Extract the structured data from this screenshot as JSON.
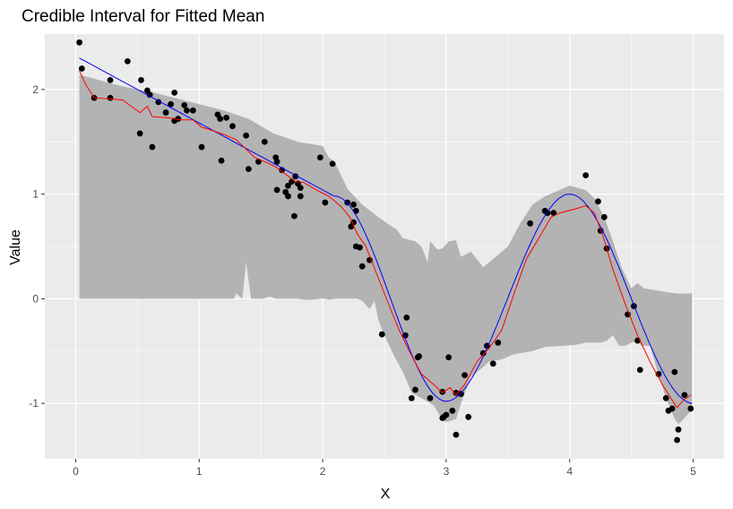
{
  "chart_data": {
    "type": "scatter",
    "title": "Credible Interval for Fitted Mean",
    "xlabel": "X",
    "ylabel": "Value",
    "xlim": [
      -0.25,
      5.25
    ],
    "ylim": [
      -1.53,
      2.53
    ],
    "x_ticks": [
      0,
      1,
      2,
      3,
      4,
      5
    ],
    "y_ticks": [
      -1,
      0,
      1,
      2
    ],
    "grid": true,
    "colors": {
      "panel": "#ebebeb",
      "grid": "#ffffff",
      "band": "#b3b3b3",
      "points": "#000000",
      "fitted_mean": "#ff0000",
      "true_function": "#0000ff"
    },
    "points": [
      [
        0.03,
        2.45
      ],
      [
        0.05,
        2.2
      ],
      [
        0.15,
        1.92
      ],
      [
        0.28,
        2.09
      ],
      [
        0.28,
        1.92
      ],
      [
        0.42,
        2.27
      ],
      [
        0.52,
        1.58
      ],
      [
        0.53,
        2.09
      ],
      [
        0.58,
        1.99
      ],
      [
        0.6,
        1.95
      ],
      [
        0.62,
        1.45
      ],
      [
        0.67,
        1.88
      ],
      [
        0.73,
        1.78
      ],
      [
        0.77,
        1.86
      ],
      [
        0.8,
        1.97
      ],
      [
        0.8,
        1.7
      ],
      [
        0.83,
        1.72
      ],
      [
        0.88,
        1.85
      ],
      [
        0.9,
        1.8
      ],
      [
        0.95,
        1.8
      ],
      [
        1.02,
        1.45
      ],
      [
        1.15,
        1.76
      ],
      [
        1.17,
        1.72
      ],
      [
        1.18,
        1.32
      ],
      [
        1.22,
        1.73
      ],
      [
        1.27,
        1.65
      ],
      [
        1.38,
        1.56
      ],
      [
        1.4,
        1.24
      ],
      [
        1.48,
        1.31
      ],
      [
        1.53,
        1.5
      ],
      [
        1.62,
        1.35
      ],
      [
        1.63,
        1.31
      ],
      [
        1.63,
        1.04
      ],
      [
        1.67,
        1.23
      ],
      [
        1.7,
        1.02
      ],
      [
        1.72,
        0.98
      ],
      [
        1.72,
        1.08
      ],
      [
        1.75,
        1.12
      ],
      [
        1.77,
        0.79
      ],
      [
        1.78,
        1.17
      ],
      [
        1.8,
        1.1
      ],
      [
        1.82,
        0.98
      ],
      [
        1.82,
        1.06
      ],
      [
        1.98,
        1.35
      ],
      [
        2.02,
        0.92
      ],
      [
        2.08,
        1.29
      ],
      [
        2.2,
        0.92
      ],
      [
        2.23,
        0.69
      ],
      [
        2.25,
        0.73
      ],
      [
        2.25,
        0.9
      ],
      [
        2.27,
        0.84
      ],
      [
        2.27,
        0.5
      ],
      [
        2.3,
        0.49
      ],
      [
        2.32,
        0.31
      ],
      [
        2.38,
        0.37
      ],
      [
        2.48,
        -0.34
      ],
      [
        2.67,
        -0.35
      ],
      [
        2.68,
        -0.18
      ],
      [
        2.72,
        -0.95
      ],
      [
        2.75,
        -0.87
      ],
      [
        2.77,
        -0.56
      ],
      [
        2.78,
        -0.55
      ],
      [
        2.87,
        -0.95
      ],
      [
        2.97,
        -0.89
      ],
      [
        2.97,
        -1.14
      ],
      [
        2.98,
        -1.13
      ],
      [
        3.0,
        -1.11
      ],
      [
        3.02,
        -0.56
      ],
      [
        3.05,
        -1.07
      ],
      [
        3.08,
        -1.3
      ],
      [
        3.08,
        -0.9
      ],
      [
        3.12,
        -0.91
      ],
      [
        3.15,
        -0.73
      ],
      [
        3.18,
        -1.13
      ],
      [
        3.3,
        -0.52
      ],
      [
        3.33,
        -0.45
      ],
      [
        3.38,
        -0.62
      ],
      [
        3.42,
        -0.42
      ],
      [
        3.68,
        0.72
      ],
      [
        3.8,
        0.84
      ],
      [
        3.82,
        0.82
      ],
      [
        3.87,
        0.82
      ],
      [
        4.13,
        1.18
      ],
      [
        4.23,
        0.93
      ],
      [
        4.25,
        0.65
      ],
      [
        4.28,
        0.78
      ],
      [
        4.3,
        0.48
      ],
      [
        4.47,
        -0.15
      ],
      [
        4.52,
        -0.07
      ],
      [
        4.55,
        -0.4
      ],
      [
        4.57,
        -0.68
      ],
      [
        4.72,
        -0.72
      ],
      [
        4.78,
        -0.95
      ],
      [
        4.8,
        -1.07
      ],
      [
        4.83,
        -1.05
      ],
      [
        4.85,
        -0.7
      ],
      [
        4.87,
        -1.35
      ],
      [
        4.88,
        -1.25
      ],
      [
        4.93,
        -0.92
      ],
      [
        4.98,
        -1.05
      ]
    ],
    "series": [
      {
        "type": "line",
        "values": [
          [
            0.03,
            2.18
          ],
          [
            0.08,
            2.05
          ],
          [
            0.15,
            1.92
          ],
          [
            0.28,
            1.91
          ],
          [
            0.38,
            1.9
          ],
          [
            0.45,
            1.84
          ],
          [
            0.52,
            1.78
          ],
          [
            0.58,
            1.84
          ],
          [
            0.62,
            1.74
          ],
          [
            0.75,
            1.73
          ],
          [
            0.85,
            1.71
          ],
          [
            0.95,
            1.71
          ],
          [
            1.02,
            1.64
          ],
          [
            1.1,
            1.61
          ],
          [
            1.2,
            1.57
          ],
          [
            1.3,
            1.52
          ],
          [
            1.45,
            1.35
          ],
          [
            1.55,
            1.3
          ],
          [
            1.62,
            1.26
          ],
          [
            1.7,
            1.19
          ],
          [
            1.78,
            1.12
          ],
          [
            1.85,
            1.11
          ],
          [
            1.95,
            1.04
          ],
          [
            2.05,
            0.98
          ],
          [
            2.15,
            0.88
          ],
          [
            2.22,
            0.78
          ],
          [
            2.28,
            0.62
          ],
          [
            2.35,
            0.5
          ],
          [
            2.45,
            0.2
          ],
          [
            2.55,
            -0.1
          ],
          [
            2.62,
            -0.3
          ],
          [
            2.7,
            -0.5
          ],
          [
            2.8,
            -0.72
          ],
          [
            2.9,
            -0.82
          ],
          [
            2.97,
            -0.9
          ],
          [
            3.03,
            -0.85
          ],
          [
            3.08,
            -0.92
          ],
          [
            3.15,
            -0.82
          ],
          [
            3.25,
            -0.6
          ],
          [
            3.35,
            -0.47
          ],
          [
            3.45,
            -0.3
          ],
          [
            3.55,
            0.05
          ],
          [
            3.65,
            0.38
          ],
          [
            3.75,
            0.58
          ],
          [
            3.85,
            0.78
          ],
          [
            3.92,
            0.82
          ],
          [
            4.05,
            0.86
          ],
          [
            4.13,
            0.89
          ],
          [
            4.2,
            0.82
          ],
          [
            4.27,
            0.6
          ],
          [
            4.35,
            0.28
          ],
          [
            4.45,
            -0.05
          ],
          [
            4.55,
            -0.35
          ],
          [
            4.65,
            -0.6
          ],
          [
            4.75,
            -0.82
          ],
          [
            4.82,
            -0.95
          ],
          [
            4.87,
            -1.04
          ],
          [
            4.92,
            -0.97
          ],
          [
            4.98,
            -0.92
          ]
        ]
      },
      {
        "type": "line",
        "values": "true_function"
      }
    ],
    "band": {
      "upper": [
        [
          0.03,
          2.14
        ],
        [
          0.1,
          2.12
        ],
        [
          0.28,
          2.06
        ],
        [
          0.42,
          2.02
        ],
        [
          0.6,
          1.98
        ],
        [
          0.8,
          1.92
        ],
        [
          1.0,
          1.86
        ],
        [
          1.2,
          1.8
        ],
        [
          1.4,
          1.72
        ],
        [
          1.6,
          1.58
        ],
        [
          1.8,
          1.5
        ],
        [
          2.0,
          1.46
        ],
        [
          2.05,
          1.35
        ],
        [
          2.1,
          1.3
        ],
        [
          2.2,
          1.05
        ],
        [
          2.32,
          0.9
        ],
        [
          2.45,
          0.78
        ],
        [
          2.55,
          0.7
        ],
        [
          2.6,
          0.66
        ],
        [
          2.65,
          0.58
        ],
        [
          2.75,
          0.55
        ],
        [
          2.8,
          0.5
        ],
        [
          2.85,
          0.35
        ],
        [
          2.87,
          0.55
        ],
        [
          2.93,
          0.47
        ],
        [
          2.97,
          0.48
        ],
        [
          3.02,
          0.55
        ],
        [
          3.08,
          0.56
        ],
        [
          3.12,
          0.4
        ],
        [
          3.2,
          0.45
        ],
        [
          3.3,
          0.3
        ],
        [
          3.4,
          0.4
        ],
        [
          3.5,
          0.5
        ],
        [
          3.6,
          0.72
        ],
        [
          3.7,
          0.9
        ],
        [
          3.8,
          0.98
        ],
        [
          3.9,
          1.03
        ],
        [
          4.0,
          1.08
        ],
        [
          4.13,
          1.04
        ],
        [
          4.2,
          0.96
        ],
        [
          4.28,
          0.78
        ],
        [
          4.35,
          0.55
        ],
        [
          4.42,
          0.3
        ],
        [
          4.5,
          0.1
        ],
        [
          4.55,
          0.15
        ],
        [
          4.6,
          0.1
        ],
        [
          4.7,
          0.08
        ],
        [
          4.8,
          0.06
        ],
        [
          4.87,
          0.05
        ],
        [
          4.9,
          0.05
        ],
        [
          4.95,
          0.05
        ],
        [
          4.99,
          0.05
        ]
      ],
      "lower": [
        [
          4.99,
          -1.06
        ],
        [
          4.93,
          -1.14
        ],
        [
          4.88,
          -1.2
        ],
        [
          4.85,
          -1.15
        ],
        [
          4.78,
          -0.95
        ],
        [
          4.7,
          -0.65
        ],
        [
          4.65,
          -0.45
        ],
        [
          4.58,
          -0.45
        ],
        [
          4.55,
          -0.4
        ],
        [
          4.5,
          -0.42
        ],
        [
          4.45,
          -0.45
        ],
        [
          4.4,
          -0.45
        ],
        [
          4.35,
          -0.35
        ],
        [
          4.3,
          -0.4
        ],
        [
          4.25,
          -0.42
        ],
        [
          4.13,
          -0.42
        ],
        [
          4.05,
          -0.44
        ],
        [
          3.95,
          -0.45
        ],
        [
          3.8,
          -0.46
        ],
        [
          3.7,
          -0.5
        ],
        [
          3.55,
          -0.53
        ],
        [
          3.45,
          -0.58
        ],
        [
          3.35,
          -0.6
        ],
        [
          3.3,
          -0.65
        ],
        [
          3.2,
          -0.75
        ],
        [
          3.12,
          -1.0
        ],
        [
          3.08,
          -1.15
        ],
        [
          3.0,
          -1.18
        ],
        [
          2.97,
          -1.16
        ],
        [
          2.9,
          -1.02
        ],
        [
          2.8,
          -0.95
        ],
        [
          2.72,
          -0.9
        ],
        [
          2.65,
          -0.7
        ],
        [
          2.58,
          -0.55
        ],
        [
          2.5,
          -0.35
        ],
        [
          2.45,
          -0.2
        ],
        [
          2.42,
          -0.02
        ],
        [
          2.38,
          -0.1
        ],
        [
          2.32,
          -0.02
        ],
        [
          2.28,
          0.0
        ],
        [
          2.22,
          0.0
        ],
        [
          2.18,
          0.0
        ],
        [
          2.1,
          0.0
        ],
        [
          2.05,
          -0.01
        ],
        [
          2.02,
          0.0
        ],
        [
          1.98,
          0.0
        ],
        [
          1.9,
          -0.01
        ],
        [
          1.85,
          -0.01
        ],
        [
          1.8,
          0.0
        ],
        [
          1.75,
          0.0
        ],
        [
          1.7,
          0.0
        ],
        [
          1.65,
          0.0
        ],
        [
          1.62,
          0.0
        ],
        [
          1.57,
          0.02
        ],
        [
          1.52,
          0.0
        ],
        [
          1.48,
          0.0
        ],
        [
          1.42,
          0.0
        ],
        [
          1.38,
          0.35
        ],
        [
          1.35,
          0.0
        ],
        [
          1.3,
          0.05
        ],
        [
          1.28,
          0.0
        ],
        [
          1.25,
          0.0
        ],
        [
          1.2,
          0.0
        ],
        [
          1.15,
          0.0
        ],
        [
          1.1,
          0.0
        ],
        [
          1.0,
          0.0
        ],
        [
          0.95,
          0.0
        ],
        [
          0.9,
          0.0
        ],
        [
          0.85,
          0.0
        ],
        [
          0.8,
          0.0
        ],
        [
          0.75,
          0.0
        ],
        [
          0.7,
          0.0
        ],
        [
          0.65,
          0.0
        ],
        [
          0.6,
          0.0
        ],
        [
          0.55,
          0.0
        ],
        [
          0.5,
          0.0
        ],
        [
          0.42,
          0.0
        ],
        [
          0.35,
          0.0
        ],
        [
          0.3,
          0.0
        ],
        [
          0.26,
          0.0
        ],
        [
          0.2,
          0.0
        ],
        [
          0.1,
          0.0
        ],
        [
          0.03,
          0.0
        ]
      ]
    }
  }
}
